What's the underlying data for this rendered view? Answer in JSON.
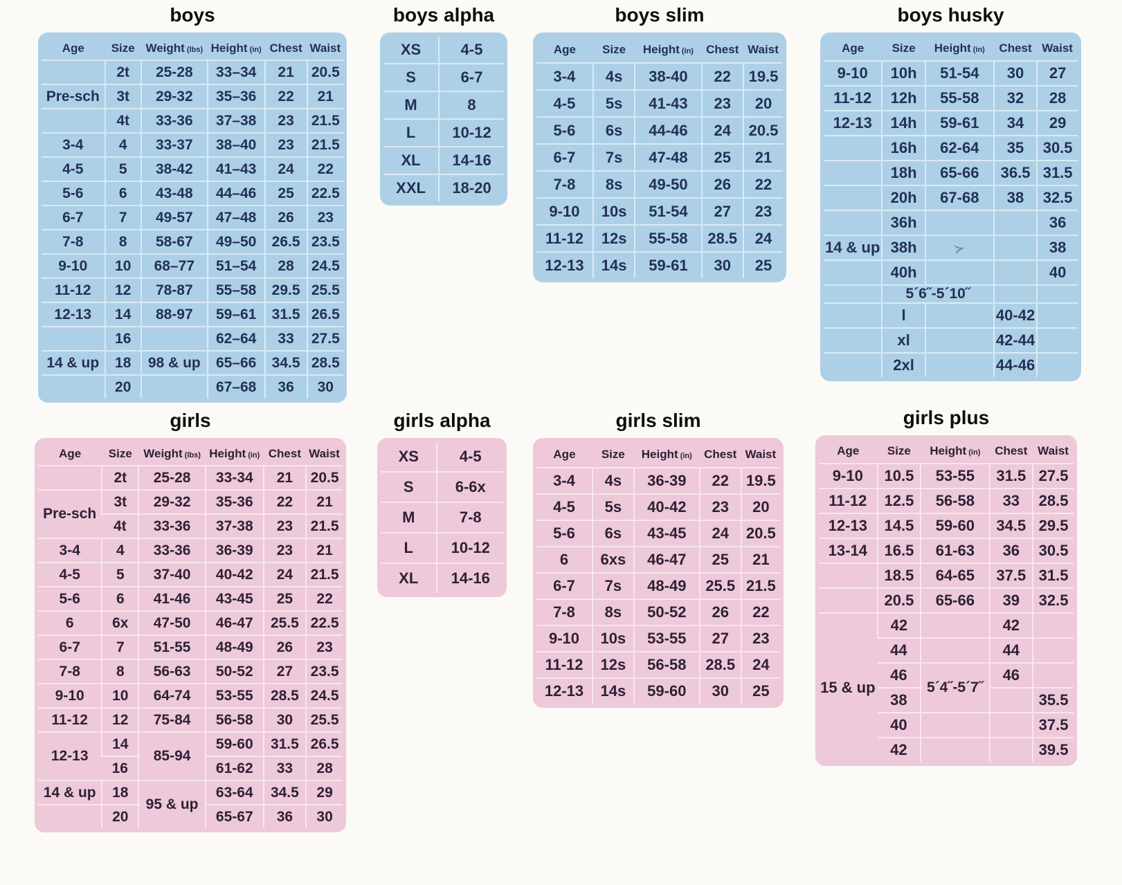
{
  "colors": {
    "table_blue_bg": "#aed0e6",
    "table_pink_bg": "#edc9da",
    "text_blue": "#233055",
    "text_pink": "#2e2135",
    "title_text": "#0e0e0e"
  },
  "tables": [
    {
      "id": "boys",
      "title": "boys",
      "theme": "blue",
      "columns": [
        {
          "label": "Age"
        },
        {
          "label": "Size"
        },
        {
          "label": "Weight",
          "unit": "(lbs)"
        },
        {
          "label": "Height",
          "unit": "(in)"
        },
        {
          "label": "Chest"
        },
        {
          "label": "Waist"
        }
      ],
      "rows": [
        [
          "",
          "2t",
          "25-28",
          "33–34",
          "21",
          "20.5"
        ],
        [
          "Pre-sch",
          "3t",
          "29-32",
          "35–36",
          "22",
          "21"
        ],
        [
          "",
          "4t",
          "33-36",
          "37–38",
          "23",
          "21.5"
        ],
        [
          "3-4",
          "4",
          "33-37",
          "38–40",
          "23",
          "21.5"
        ],
        [
          "4-5",
          "5",
          "38-42",
          "41–43",
          "24",
          "22"
        ],
        [
          "5-6",
          "6",
          "43-48",
          "44–46",
          "25",
          "22.5"
        ],
        [
          "6-7",
          "7",
          "49-57",
          "47–48",
          "26",
          "23"
        ],
        [
          "7-8",
          "8",
          "58-67",
          "49–50",
          "26.5",
          "23.5"
        ],
        [
          "9-10",
          "10",
          "68–77",
          "51–54",
          "28",
          "24.5"
        ],
        [
          "11-12",
          "12",
          "78-87",
          "55–58",
          "29.5",
          "25.5"
        ],
        [
          "12-13",
          "14",
          "88-97",
          "59–61",
          "31.5",
          "26.5"
        ],
        [
          "",
          "16",
          "",
          "62–64",
          "33",
          "27.5"
        ],
        [
          "14 & up",
          "18",
          "98 & up",
          "65–66",
          "34.5",
          "28.5"
        ],
        [
          "",
          "20",
          "",
          "67–68",
          "36",
          "30"
        ]
      ]
    },
    {
      "id": "boys-alpha",
      "title": "boys alpha",
      "theme": "blue",
      "columns": [],
      "rows": [
        [
          "XS",
          "4-5"
        ],
        [
          "S",
          "6-7"
        ],
        [
          "M",
          "8"
        ],
        [
          "L",
          "10-12"
        ],
        [
          "XL",
          "14-16"
        ],
        [
          "XXL",
          "18-20"
        ]
      ]
    },
    {
      "id": "boys-slim",
      "title": "boys slim",
      "theme": "blue",
      "columns": [
        {
          "label": "Age"
        },
        {
          "label": "Size"
        },
        {
          "label": "Height",
          "unit": "(in)"
        },
        {
          "label": "Chest"
        },
        {
          "label": "Waist"
        }
      ],
      "rows": [
        [
          "3-4",
          "4s",
          "38-40",
          "22",
          "19.5"
        ],
        [
          "4-5",
          "5s",
          "41-43",
          "23",
          "20"
        ],
        [
          "5-6",
          "6s",
          "44-46",
          "24",
          "20.5"
        ],
        [
          "6-7",
          "7s",
          "47-48",
          "25",
          "21"
        ],
        [
          "7-8",
          "8s",
          "49-50",
          "26",
          "22"
        ],
        [
          "9-10",
          "10s",
          "51-54",
          "27",
          "23"
        ],
        [
          "11-12",
          "12s",
          "55-58",
          "28.5",
          "24"
        ],
        [
          "12-13",
          "14s",
          "59-61",
          "30",
          "25"
        ]
      ]
    },
    {
      "id": "boys-husky",
      "title": "boys husky",
      "theme": "blue",
      "columns": [
        {
          "label": "Age"
        },
        {
          "label": "Size"
        },
        {
          "label": "Height",
          "unit": "(in)"
        },
        {
          "label": "Chest"
        },
        {
          "label": "Waist"
        }
      ],
      "rows": [
        [
          "9-10",
          "10h",
          "51-54",
          "30",
          "27"
        ],
        [
          "11-12",
          "12h",
          "55-58",
          "32",
          "28"
        ],
        [
          "12-13",
          "14h",
          "59-61",
          "34",
          "29"
        ],
        [
          "",
          "16h",
          "62-64",
          "35",
          "30.5"
        ],
        [
          "",
          "18h",
          "65-66",
          "36.5",
          "31.5"
        ],
        [
          "",
          "20h",
          "67-68",
          "38",
          "32.5"
        ],
        [
          "",
          "36h",
          "",
          "",
          "36"
        ],
        [
          "14 & up",
          "38h",
          {
            "text": "≻",
            "icon": "pen-mark-icon"
          },
          "",
          "38"
        ],
        [
          "",
          "40h",
          "",
          "",
          "40"
        ],
        {
          "class": "compact",
          "cells": [
            "",
            {
              "text": "5´6˝-5´10˝",
              "colspan": 2,
              "class": "height-note"
            },
            "",
            ""
          ]
        },
        [
          "",
          "l",
          "",
          "40-42",
          ""
        ],
        [
          "",
          "xl",
          "",
          "42-44",
          ""
        ],
        [
          "",
          "2xl",
          "",
          "44-46",
          ""
        ]
      ]
    },
    {
      "id": "girls",
      "title": "girls",
      "theme": "pink",
      "columns": [
        {
          "label": "Age"
        },
        {
          "label": "Size"
        },
        {
          "label": "Weight",
          "unit": "(lbs)"
        },
        {
          "label": "Height",
          "unit": "(in)"
        },
        {
          "label": "Chest"
        },
        {
          "label": "Waist"
        }
      ],
      "rows": [
        [
          "",
          "2t",
          "25-28",
          "33-34",
          "21",
          "20.5"
        ],
        [
          {
            "text": "Pre-sch",
            "rowspan": 2
          },
          "3t",
          "29-32",
          "35-36",
          "22",
          "21"
        ],
        [
          null,
          "4t",
          "33-36",
          "37-38",
          "23",
          "21.5"
        ],
        [
          "3-4",
          "4",
          "33-36",
          "36-39",
          "23",
          "21"
        ],
        [
          "4-5",
          "5",
          "37-40",
          "40-42",
          "24",
          "21.5"
        ],
        [
          "5-6",
          "6",
          "41-46",
          "43-45",
          "25",
          "22"
        ],
        [
          "6",
          "6x",
          "47-50",
          "46-47",
          "25.5",
          "22.5"
        ],
        [
          "6-7",
          "7",
          "51-55",
          "48-49",
          "26",
          "23"
        ],
        [
          "7-8",
          "8",
          "56-63",
          "50-52",
          "27",
          "23.5"
        ],
        [
          "9-10",
          "10",
          "64-74",
          "53-55",
          "28.5",
          "24.5"
        ],
        [
          "11-12",
          "12",
          "75-84",
          "56-58",
          "30",
          "25.5"
        ],
        [
          {
            "text": "12-13",
            "rowspan": 2
          },
          "14",
          {
            "text": "85-94",
            "rowspan": 2
          },
          "59-60",
          "31.5",
          "26.5"
        ],
        [
          null,
          "16",
          null,
          "61-62",
          "33",
          "28"
        ],
        [
          "14 & up",
          "18",
          {
            "text": "95 & up",
            "rowspan": 2
          },
          "63-64",
          "34.5",
          "29"
        ],
        [
          "",
          "20",
          null,
          "65-67",
          "36",
          "30"
        ]
      ]
    },
    {
      "id": "girls-alpha",
      "title": "girls alpha",
      "theme": "pink",
      "columns": [],
      "rows": [
        [
          "XS",
          "4-5"
        ],
        [
          "S",
          "6-6x"
        ],
        [
          "M",
          "7-8"
        ],
        [
          "L",
          "10-12"
        ],
        [
          "XL",
          "14-16"
        ]
      ]
    },
    {
      "id": "girls-slim",
      "title": "girls slim",
      "theme": "pink",
      "columns": [
        {
          "label": "Age"
        },
        {
          "label": "Size"
        },
        {
          "label": "Height",
          "unit": "(in)"
        },
        {
          "label": "Chest"
        },
        {
          "label": "Waist"
        }
      ],
      "rows": [
        [
          "3-4",
          "4s",
          "36-39",
          "22",
          "19.5"
        ],
        [
          "4-5",
          "5s",
          "40-42",
          "23",
          "20"
        ],
        [
          "5-6",
          "6s",
          "43-45",
          "24",
          "20.5"
        ],
        [
          "6",
          "6xs",
          "46-47",
          "25",
          "21"
        ],
        [
          "6-7",
          "7s",
          "48-49",
          "25.5",
          "21.5"
        ],
        [
          "7-8",
          "8s",
          "50-52",
          "26",
          "22"
        ],
        [
          "9-10",
          "10s",
          "53-55",
          "27",
          "23"
        ],
        [
          "11-12",
          "12s",
          "56-58",
          "28.5",
          "24"
        ],
        [
          "12-13",
          "14s",
          "59-60",
          "30",
          "25"
        ]
      ]
    },
    {
      "id": "girls-plus",
      "title": "girls plus",
      "theme": "pink",
      "columns": [
        {
          "label": "Age"
        },
        {
          "label": "Size"
        },
        {
          "label": "Height",
          "unit": "(in)"
        },
        {
          "label": "Chest"
        },
        {
          "label": "Waist"
        }
      ],
      "rows": [
        [
          "9-10",
          "10.5",
          "53-55",
          "31.5",
          "27.5"
        ],
        [
          "11-12",
          "12.5",
          "56-58",
          "33",
          "28.5"
        ],
        [
          "12-13",
          "14.5",
          "59-60",
          "34.5",
          "29.5"
        ],
        [
          "13-14",
          "16.5",
          "61-63",
          "36",
          "30.5"
        ],
        [
          "",
          "18.5",
          "64-65",
          "37.5",
          "31.5"
        ],
        [
          "",
          "20.5",
          "65-66",
          "39",
          "32.5"
        ],
        [
          {
            "text": "15 & up",
            "rowspan": 6
          },
          "42",
          "",
          "42",
          ""
        ],
        [
          null,
          "44",
          "",
          "44",
          ""
        ],
        [
          null,
          "46",
          {
            "text": "5´4˝-5´7˝",
            "rowspan": 2,
            "class": "height-note"
          },
          "46",
          ""
        ],
        [
          null,
          "38",
          null,
          "",
          "35.5"
        ],
        [
          null,
          "40",
          "",
          "",
          "37.5"
        ],
        [
          null,
          "42",
          "",
          "",
          "39.5"
        ]
      ]
    }
  ]
}
